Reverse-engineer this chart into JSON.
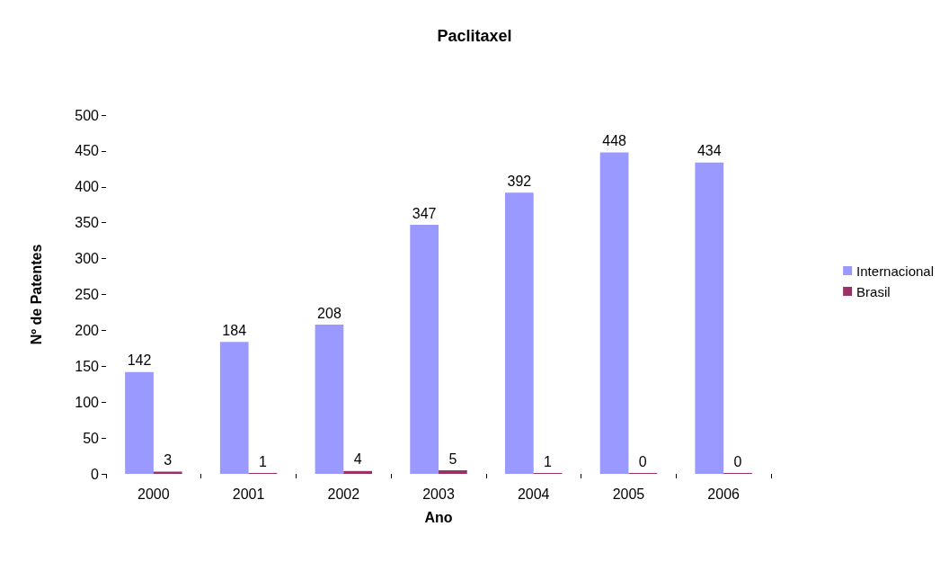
{
  "chart_data": {
    "type": "bar",
    "title": "Paclitaxel",
    "xlabel": "Ano",
    "ylabel": "Nº de Patentes",
    "categories": [
      "2000",
      "2001",
      "2002",
      "2003",
      "2004",
      "2005",
      "2006"
    ],
    "series": [
      {
        "name": "Internacional",
        "color": "#9999ff",
        "values": [
          142,
          184,
          208,
          347,
          392,
          448,
          434
        ]
      },
      {
        "name": "Brasil",
        "color": "#993366",
        "values": [
          3,
          1,
          4,
          5,
          1,
          0,
          0
        ]
      }
    ],
    "ylim": [
      0,
      500
    ],
    "yticks": [
      0,
      50,
      100,
      150,
      200,
      250,
      300,
      350,
      400,
      450,
      500
    ],
    "grid": false,
    "legend": "right",
    "data_labels": true
  }
}
